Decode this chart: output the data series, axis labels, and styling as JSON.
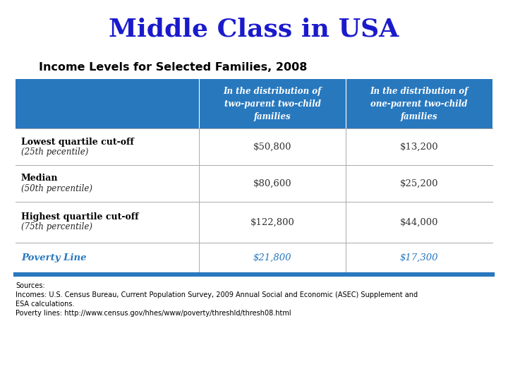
{
  "title": "Middle Class in USA",
  "subtitle": "Income Levels for Selected Families, 2008",
  "title_color": "#1a1acc",
  "subtitle_color": "#000000",
  "header_bg": "#2878be",
  "header_text_color": "#ffffff",
  "col1_header": "In the distribution of\ntwo-parent two-child\nfamilies",
  "col2_header": "In the distribution of\none-parent two-child\nfamilies",
  "rows": [
    {
      "label_bold": "Lowest quartile cut-off",
      "label_italic": "(25th pecentile)",
      "col1": "$50,800",
      "col2": "$13,200",
      "italic_row": false
    },
    {
      "label_bold": "Median",
      "label_italic": "(50th percentile)",
      "col1": "$80,600",
      "col2": "$25,200",
      "italic_row": false
    },
    {
      "label_bold": "Highest quartile cut-off",
      "label_italic": "(75th percentile)",
      "col1": "$122,800",
      "col2": "$44,000",
      "italic_row": false
    },
    {
      "label_bold": "Poverty Line",
      "label_italic": "",
      "col1": "$21,800",
      "col2": "$17,300",
      "italic_row": true
    }
  ],
  "sources_line1": "Sources:",
  "sources_line2": "Incomes: U.S. Census Bureau, Current Population Survey, 2009 Annual Social and Economic (ASEC) Supplement and",
  "sources_line3": "ESA calculations.",
  "sources_line4": "Poverty lines: http://www.census.gov/hhes/www/poverty/threshld/thresh08.html",
  "poverty_color": "#2878be",
  "divider_color": "#aaaaaa",
  "border_blue": "#2878be",
  "fig_w": 7.2,
  "fig_h": 5.4,
  "dpi": 100
}
